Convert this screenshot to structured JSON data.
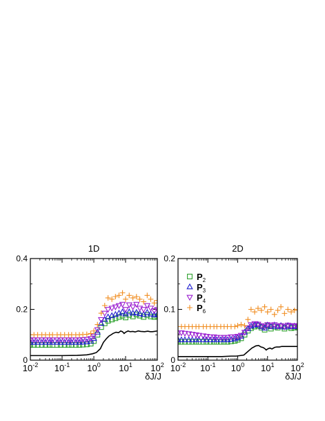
{
  "chart_data": [
    {
      "type": "scatter",
      "title": "1D",
      "xlabel": "δJ/J",
      "ylabel": "",
      "xscale": "log",
      "xlim": [
        0.01,
        100
      ],
      "ylim": [
        0,
        0.4
      ],
      "yticks": [
        0,
        0.2,
        0.4
      ],
      "ytick_labels": [
        "0",
        "0.2",
        "0.4"
      ],
      "xtick_labels": [
        {
          "base": "10",
          "exp": "-2"
        },
        {
          "base": "10",
          "exp": "-1"
        },
        {
          "base": "10",
          "exp": "0"
        },
        {
          "base": "10",
          "exp": "1"
        },
        {
          "base": "10",
          "exp": "2"
        }
      ],
      "series": [
        {
          "key": "P2",
          "marker": "square",
          "color": "#2ca02c",
          "x": [
            0.01,
            0.013,
            0.017,
            0.023,
            0.03,
            0.04,
            0.05,
            0.07,
            0.09,
            0.12,
            0.16,
            0.2,
            0.27,
            0.35,
            0.45,
            0.6,
            0.8,
            1.0,
            1.3,
            1.7,
            2.2,
            2.8,
            3.7,
            4.8,
            6.2,
            8,
            10,
            13,
            17,
            22,
            28,
            37,
            48,
            62,
            80,
            100
          ],
          "y": [
            0.06,
            0.06,
            0.06,
            0.06,
            0.06,
            0.06,
            0.06,
            0.06,
            0.06,
            0.06,
            0.06,
            0.06,
            0.06,
            0.06,
            0.061,
            0.062,
            0.065,
            0.075,
            0.1,
            0.13,
            0.145,
            0.155,
            0.16,
            0.165,
            0.17,
            0.175,
            0.168,
            0.178,
            0.172,
            0.18,
            0.175,
            0.17,
            0.178,
            0.172,
            0.17,
            0.172
          ]
        },
        {
          "key": "P3",
          "marker": "triangle-up",
          "color": "#1f1fd0",
          "x": [
            0.01,
            0.013,
            0.017,
            0.023,
            0.03,
            0.04,
            0.05,
            0.07,
            0.09,
            0.12,
            0.16,
            0.2,
            0.27,
            0.35,
            0.45,
            0.6,
            0.8,
            1.0,
            1.3,
            1.7,
            2.2,
            2.8,
            3.7,
            4.8,
            6.2,
            8,
            10,
            13,
            17,
            22,
            28,
            37,
            48,
            62,
            80,
            100
          ],
          "y": [
            0.07,
            0.07,
            0.07,
            0.07,
            0.07,
            0.07,
            0.07,
            0.07,
            0.07,
            0.07,
            0.07,
            0.07,
            0.07,
            0.07,
            0.071,
            0.072,
            0.075,
            0.085,
            0.11,
            0.145,
            0.16,
            0.17,
            0.175,
            0.18,
            0.185,
            0.19,
            0.182,
            0.19,
            0.185,
            0.188,
            0.183,
            0.18,
            0.188,
            0.182,
            0.178,
            0.18
          ]
        },
        {
          "key": "P4",
          "marker": "triangle-down",
          "color": "#9b1fd0",
          "x": [
            0.01,
            0.013,
            0.017,
            0.023,
            0.03,
            0.04,
            0.05,
            0.07,
            0.09,
            0.12,
            0.16,
            0.2,
            0.27,
            0.35,
            0.45,
            0.6,
            0.8,
            1.0,
            1.3,
            1.7,
            2.2,
            2.8,
            3.7,
            4.8,
            6.2,
            8,
            10,
            13,
            17,
            22,
            28,
            37,
            48,
            62,
            80,
            100
          ],
          "y": [
            0.08,
            0.08,
            0.08,
            0.08,
            0.08,
            0.08,
            0.08,
            0.08,
            0.08,
            0.08,
            0.08,
            0.08,
            0.08,
            0.08,
            0.081,
            0.082,
            0.085,
            0.095,
            0.12,
            0.16,
            0.185,
            0.2,
            0.205,
            0.21,
            0.215,
            0.22,
            0.2,
            0.218,
            0.21,
            0.22,
            0.205,
            0.2,
            0.215,
            0.205,
            0.195,
            0.2
          ]
        },
        {
          "key": "P6",
          "marker": "plus",
          "color": "#f08c1f",
          "x": [
            0.01,
            0.013,
            0.017,
            0.023,
            0.03,
            0.04,
            0.05,
            0.07,
            0.09,
            0.12,
            0.16,
            0.2,
            0.27,
            0.35,
            0.45,
            0.6,
            0.8,
            1.0,
            1.3,
            1.7,
            2.2,
            2.8,
            3.7,
            4.8,
            6.2,
            8,
            10,
            13,
            17,
            22,
            28,
            37,
            48,
            62,
            80,
            100
          ],
          "y": [
            0.1,
            0.1,
            0.1,
            0.1,
            0.1,
            0.1,
            0.1,
            0.1,
            0.1,
            0.1,
            0.1,
            0.1,
            0.1,
            0.1,
            0.101,
            0.102,
            0.105,
            0.115,
            0.14,
            0.185,
            0.215,
            0.245,
            0.24,
            0.25,
            0.255,
            0.265,
            0.24,
            0.255,
            0.245,
            0.25,
            0.24,
            0.23,
            0.255,
            0.24,
            0.225,
            0.235
          ]
        },
        {
          "key": "line",
          "marker": "line",
          "color": "#000000",
          "x": [
            0.01,
            0.05,
            0.1,
            0.3,
            0.6,
            0.9,
            1.2,
            1.6,
            2.0,
            2.5,
            3.0,
            3.5,
            4.0,
            5.0,
            6.0,
            7.0,
            8.0,
            9.0,
            10,
            12,
            14,
            17,
            20,
            25,
            30,
            40,
            50,
            60,
            70,
            80,
            100
          ],
          "y": [
            0.018,
            0.018,
            0.018,
            0.019,
            0.021,
            0.025,
            0.03,
            0.045,
            0.07,
            0.085,
            0.095,
            0.1,
            0.105,
            0.11,
            0.108,
            0.115,
            0.112,
            0.105,
            0.11,
            0.115,
            0.112,
            0.113,
            0.111,
            0.115,
            0.113,
            0.112,
            0.114,
            0.112,
            0.112,
            0.113,
            0.115
          ]
        }
      ]
    },
    {
      "type": "scatter",
      "title": "2D",
      "xlabel": "δJ/J",
      "ylabel": "",
      "xscale": "log",
      "xlim": [
        0.01,
        100
      ],
      "ylim": [
        0,
        0.2
      ],
      "yticks": [
        0,
        0.1,
        0.2
      ],
      "ytick_labels": [
        "0",
        "0.1",
        "0.2"
      ],
      "xtick_labels": [
        {
          "base": "10",
          "exp": "-2"
        },
        {
          "base": "10",
          "exp": "-1"
        },
        {
          "base": "10",
          "exp": "0"
        },
        {
          "base": "10",
          "exp": "1"
        },
        {
          "base": "10",
          "exp": "2"
        }
      ],
      "legend": {
        "placement": "top-left"
      },
      "series": [
        {
          "key": "P2",
          "name": "P",
          "sub": "2",
          "marker": "square",
          "color": "#2ca02c",
          "x": [
            0.01,
            0.013,
            0.017,
            0.023,
            0.03,
            0.04,
            0.05,
            0.07,
            0.09,
            0.12,
            0.16,
            0.2,
            0.27,
            0.35,
            0.45,
            0.6,
            0.8,
            1.0,
            1.3,
            1.7,
            2.2,
            2.8,
            3.7,
            4.8,
            6.2,
            8,
            10,
            13,
            17,
            22,
            28,
            37,
            48,
            62,
            80,
            100
          ],
          "y": [
            0.036,
            0.036,
            0.036,
            0.036,
            0.036,
            0.036,
            0.036,
            0.036,
            0.036,
            0.036,
            0.036,
            0.036,
            0.036,
            0.036,
            0.036,
            0.037,
            0.038,
            0.04,
            0.043,
            0.05,
            0.058,
            0.063,
            0.066,
            0.068,
            0.064,
            0.06,
            0.068,
            0.062,
            0.066,
            0.064,
            0.067,
            0.062,
            0.066,
            0.063,
            0.064,
            0.065
          ]
        },
        {
          "key": "P3",
          "name": "P",
          "sub": "3",
          "marker": "triangle-up",
          "color": "#1f1fd0",
          "x": [
            0.01,
            0.013,
            0.017,
            0.023,
            0.03,
            0.04,
            0.05,
            0.07,
            0.09,
            0.12,
            0.16,
            0.2,
            0.27,
            0.35,
            0.45,
            0.6,
            0.8,
            1.0,
            1.3,
            1.7,
            2.2,
            2.8,
            3.7,
            4.8,
            6.2,
            8,
            10,
            13,
            17,
            22,
            28,
            37,
            48,
            62,
            80,
            100
          ],
          "y": [
            0.04,
            0.04,
            0.04,
            0.04,
            0.04,
            0.04,
            0.04,
            0.04,
            0.04,
            0.04,
            0.04,
            0.04,
            0.04,
            0.04,
            0.04,
            0.041,
            0.042,
            0.044,
            0.047,
            0.055,
            0.062,
            0.067,
            0.069,
            0.07,
            0.066,
            0.063,
            0.069,
            0.066,
            0.069,
            0.066,
            0.068,
            0.065,
            0.068,
            0.066,
            0.067,
            0.066
          ]
        },
        {
          "key": "P4",
          "name": "P",
          "sub": "4",
          "marker": "triangle-down",
          "color": "#9b1fd0",
          "x": [
            0.01,
            0.013,
            0.017,
            0.023,
            0.03,
            0.04,
            0.05,
            0.07,
            0.09,
            0.12,
            0.16,
            0.2,
            0.27,
            0.35,
            0.45,
            0.6,
            0.8,
            1.0,
            1.3,
            1.7,
            2.2,
            2.8,
            3.7,
            4.8,
            6.2,
            8,
            10,
            13,
            17,
            22,
            28,
            37,
            48,
            62,
            80,
            100
          ],
          "y": [
            0.054,
            0.054,
            0.053,
            0.052,
            0.051,
            0.05,
            0.049,
            0.048,
            0.047,
            0.046,
            0.046,
            0.045,
            0.045,
            0.045,
            0.045,
            0.046,
            0.046,
            0.047,
            0.049,
            0.055,
            0.064,
            0.07,
            0.072,
            0.071,
            0.068,
            0.066,
            0.07,
            0.068,
            0.07,
            0.067,
            0.068,
            0.066,
            0.069,
            0.067,
            0.068,
            0.067
          ]
        },
        {
          "key": "P6",
          "name": "P",
          "sub": "6",
          "marker": "plus",
          "color": "#f08c1f",
          "x": [
            0.01,
            0.013,
            0.017,
            0.023,
            0.03,
            0.04,
            0.05,
            0.07,
            0.09,
            0.12,
            0.16,
            0.2,
            0.27,
            0.35,
            0.45,
            0.6,
            0.8,
            1.0,
            1.3,
            1.7,
            2.2,
            2.8,
            3.7,
            4.8,
            6.2,
            8,
            10,
            13,
            17,
            22,
            28,
            37,
            48,
            62,
            80,
            100
          ],
          "y": [
            0.066,
            0.066,
            0.066,
            0.066,
            0.066,
            0.066,
            0.066,
            0.066,
            0.066,
            0.066,
            0.066,
            0.066,
            0.066,
            0.066,
            0.066,
            0.066,
            0.066,
            0.068,
            0.07,
            0.068,
            0.08,
            0.1,
            0.095,
            0.102,
            0.098,
            0.105,
            0.095,
            0.1,
            0.09,
            0.098,
            0.105,
            0.092,
            0.1,
            0.095,
            0.098,
            0.1
          ]
        },
        {
          "key": "line",
          "marker": "line",
          "color": "#000000",
          "x": [
            0.01,
            0.05,
            0.1,
            0.3,
            0.6,
            0.9,
            1.2,
            1.6,
            2.0,
            2.5,
            3.0,
            3.5,
            4.0,
            5.0,
            6.0,
            7.0,
            8.0,
            9.0,
            10,
            12,
            14,
            17,
            20,
            25,
            30,
            40,
            50,
            60,
            70,
            80,
            100
          ],
          "y": [
            0.007,
            0.007,
            0.007,
            0.007,
            0.008,
            0.008,
            0.009,
            0.01,
            0.015,
            0.02,
            0.024,
            0.026,
            0.028,
            0.029,
            0.026,
            0.025,
            0.023,
            0.02,
            0.022,
            0.024,
            0.022,
            0.025,
            0.026,
            0.026,
            0.027,
            0.027,
            0.027,
            0.027,
            0.027,
            0.027,
            0.027
          ]
        }
      ]
    }
  ]
}
